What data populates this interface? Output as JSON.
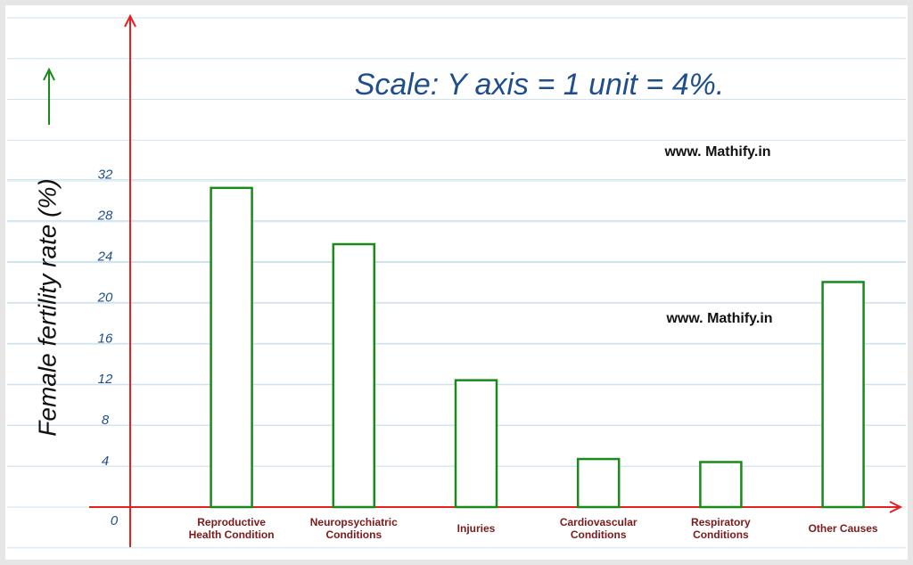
{
  "chart_data": {
    "type": "bar",
    "title": "Scale: Y axis = 1 unit = 4%.",
    "ylabel": "Female fertility rate (%)",
    "annotations": [
      "www. Mathify.in",
      "www. Mathify.in"
    ],
    "categories": [
      "Reproductive\nHealth Condition",
      "Neuropsychiatric\nConditions",
      "Injuries",
      "Cardiovascular\nConditions",
      "Respiratory\nConditions",
      "Other Causes"
    ],
    "values": [
      31.2,
      25.7,
      12.4,
      4.7,
      4.4,
      22.0
    ],
    "color": "#1a8a1a",
    "ylim": [
      0,
      48
    ],
    "yticks": [
      0,
      4,
      8,
      12,
      16,
      20,
      24,
      28,
      32
    ],
    "grid": true
  }
}
